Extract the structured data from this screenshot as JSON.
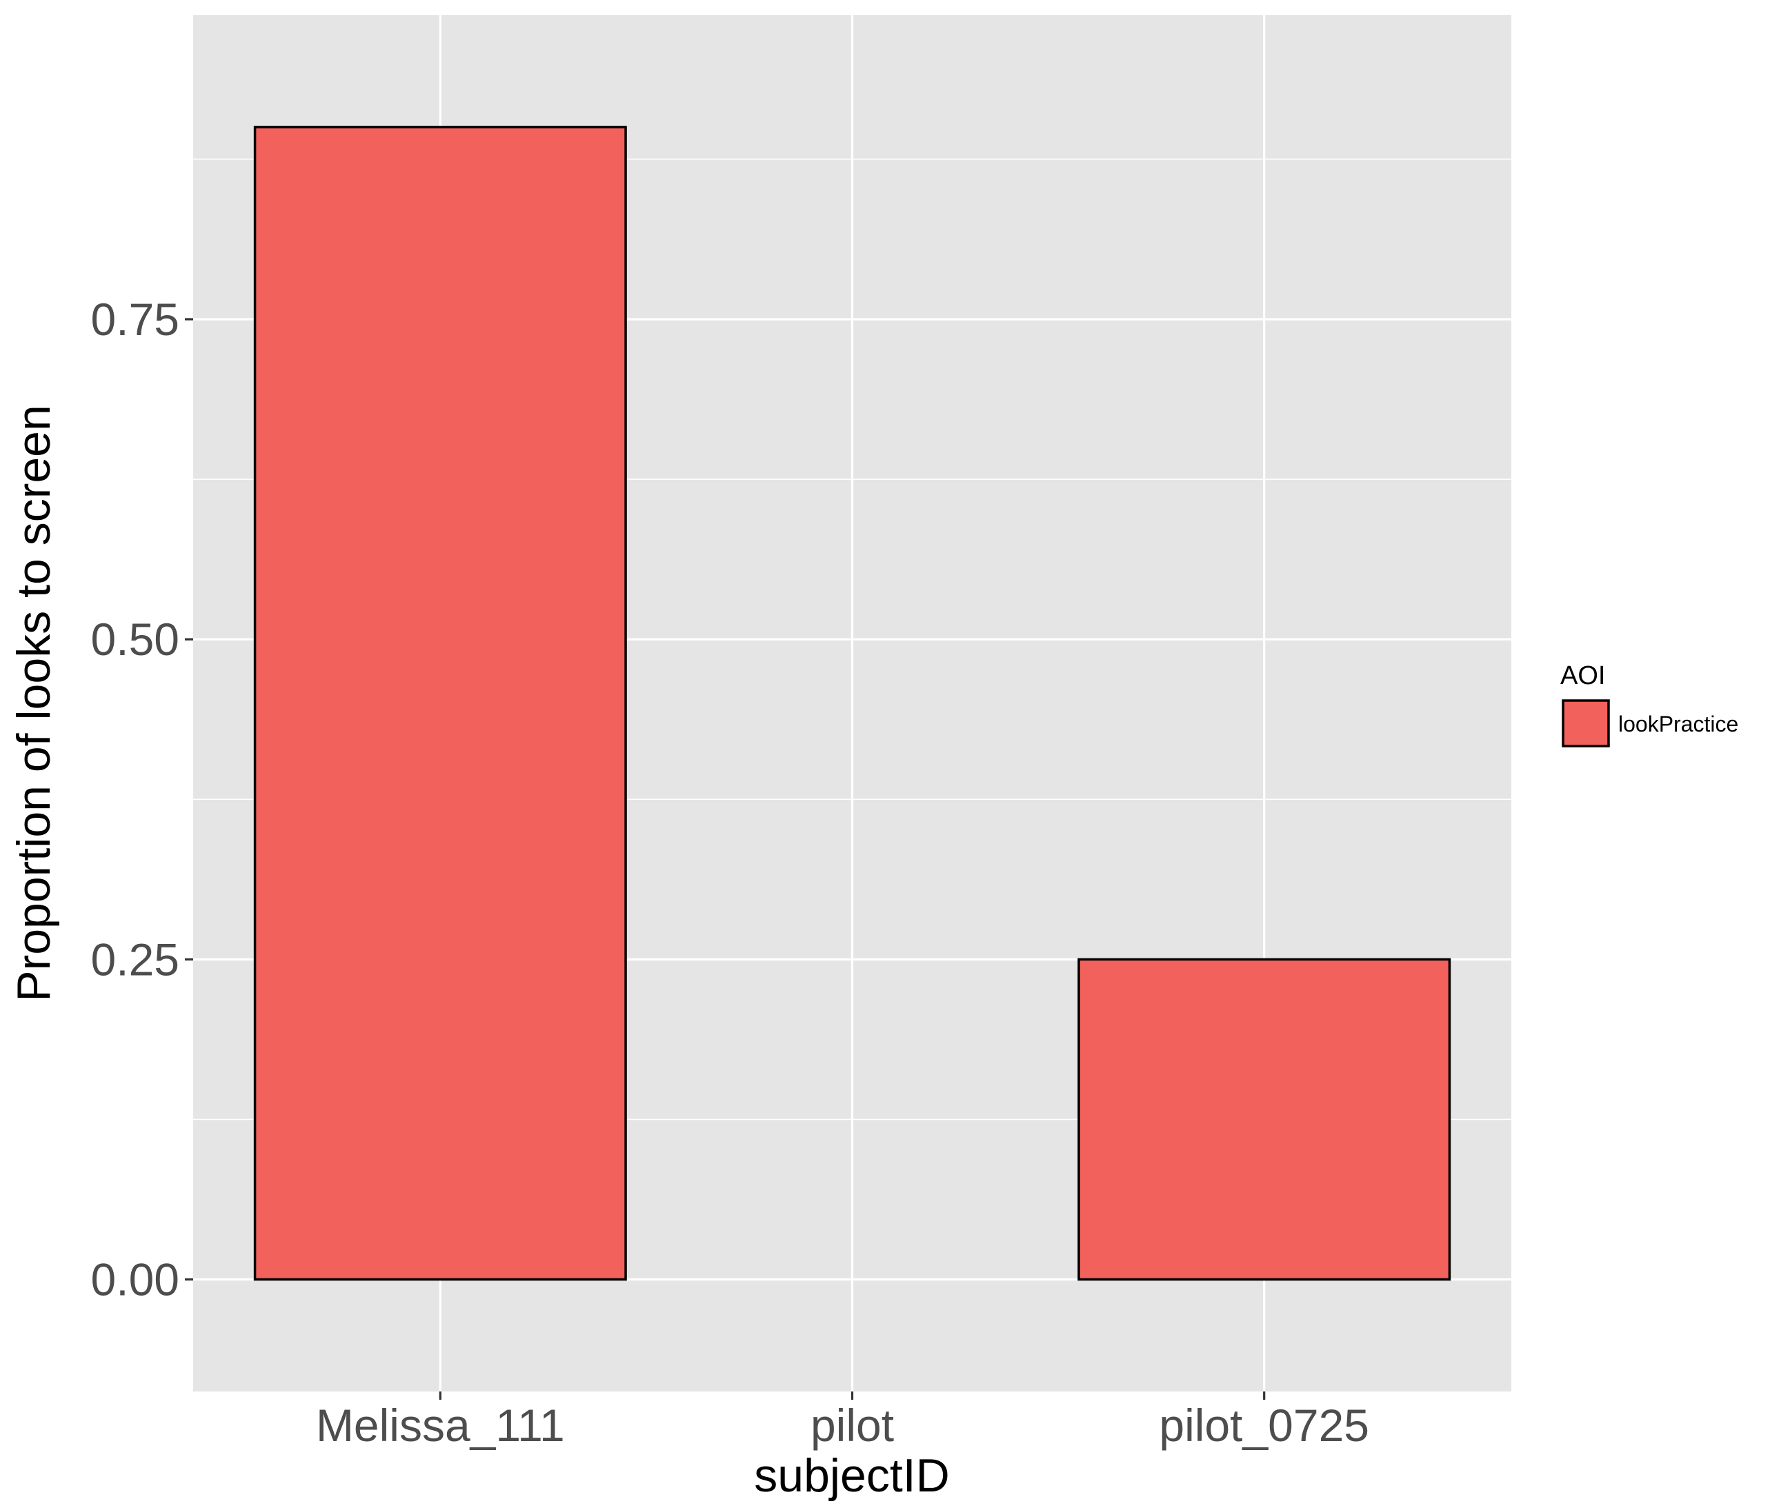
{
  "chart_data": {
    "type": "bar",
    "categories": [
      "Melissa_111",
      "pilot",
      "pilot_0725"
    ],
    "series": [
      {
        "name": "lookPractice",
        "values": [
          0.9,
          0.0,
          0.25
        ]
      }
    ],
    "xlabel": "subjectID",
    "ylabel": "Proportion of looks to screen",
    "ylim": [
      -0.0875,
      0.9875
    ],
    "yticks": [
      0.0,
      0.25,
      0.5,
      0.75
    ],
    "ytick_labels": [
      "0.00",
      "0.25",
      "0.50",
      "0.75"
    ],
    "grid": true,
    "legend": {
      "title": "AOI",
      "entries": [
        "lookPractice"
      ],
      "placement": "right"
    },
    "colors": {
      "bar_fill": "#F3615C",
      "bar_outline": "#000000",
      "panel_background": "#E5E5E5",
      "grid_major": "#FFFFFF",
      "tick_label": "#4D4D4D"
    }
  }
}
